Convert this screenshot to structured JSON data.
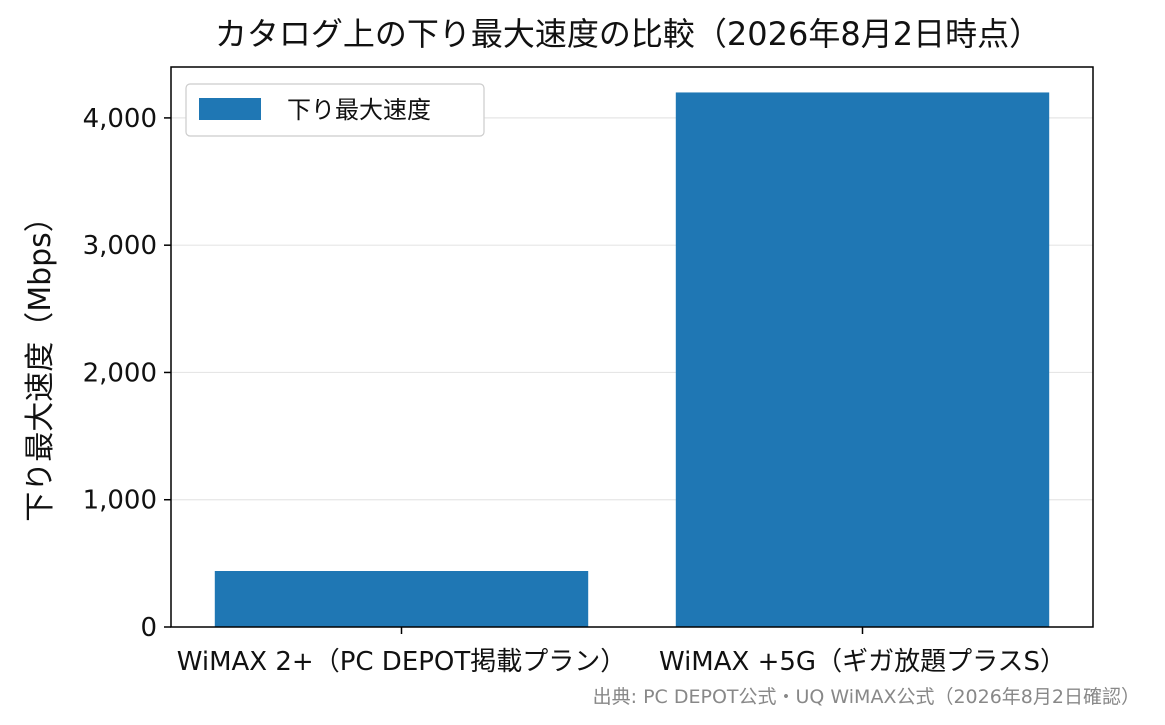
{
  "chart_data": {
    "type": "bar",
    "title": "カタログ上の下り最大速度の比較（2026年8月2日時点）",
    "categories": [
      "WiMAX 2+（PC DEPOT掲載プラン）",
      "WiMAX +5G（ギガ放題プラスS）"
    ],
    "series": [
      {
        "name": "下り最大速度",
        "values": [
          440,
          4200
        ],
        "color": "#1f77b4"
      }
    ],
    "xlabel": "",
    "ylabel": "下り最大速度（Mbps）",
    "ylim": [
      0,
      4400
    ],
    "yticks": [
      0,
      1000,
      2000,
      3000,
      4000
    ],
    "ytick_labels": [
      "0",
      "1,000",
      "2,000",
      "3,000",
      "4,000"
    ],
    "grid": "horizontal",
    "legend_position": "top-left",
    "source_note": "出典: PC DEPOT公式・UQ WiMAX公式（2026年8月2日確認）"
  }
}
